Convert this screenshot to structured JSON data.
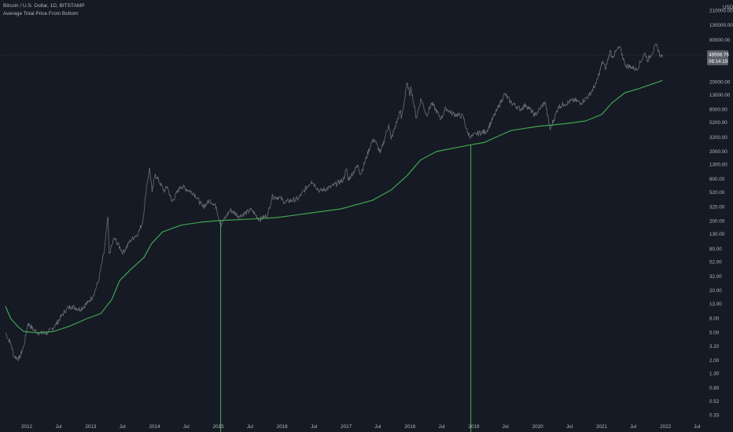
{
  "legend": {
    "symbol_line": "Bitcoin / U.S. Dollar, 1D, BITSTAMP",
    "indicator_line": "Average Total Price From Bottom"
  },
  "price_label": {
    "price": "48568.76",
    "countdown": "06:14:19"
  },
  "colors": {
    "background": "#161a25",
    "price_line": "#6b6e78",
    "indicator_line": "#3fa54f",
    "marker_line": "#4caf50",
    "axis_text": "#b2b5be",
    "label_bg": "#5d606b"
  },
  "chart_data": {
    "type": "line",
    "yscale": "log",
    "ylim": [
      0.27,
      300000
    ],
    "xlim": [
      "2011-08-01",
      "2022-07-31"
    ],
    "currency": "USD",
    "y_ticks": [
      {
        "label": "210000.00",
        "value": 210000
      },
      {
        "label": "130000.00",
        "value": 130000
      },
      {
        "label": "80000.00",
        "value": 80000
      },
      {
        "label": "20000.00",
        "value": 20000
      },
      {
        "label": "13000.00",
        "value": 13000
      },
      {
        "label": "8000.00",
        "value": 8000
      },
      {
        "label": "5200.00",
        "value": 5200
      },
      {
        "label": "3200.00",
        "value": 3200
      },
      {
        "label": "2000.00",
        "value": 2000
      },
      {
        "label": "1300.00",
        "value": 1300
      },
      {
        "label": "800.00",
        "value": 800
      },
      {
        "label": "520.00",
        "value": 520
      },
      {
        "label": "320.00",
        "value": 320
      },
      {
        "label": "200.00",
        "value": 200
      },
      {
        "label": "130.00",
        "value": 130
      },
      {
        "label": "80.00",
        "value": 80
      },
      {
        "label": "52.00",
        "value": 52
      },
      {
        "label": "32.00",
        "value": 32
      },
      {
        "label": "20.00",
        "value": 20
      },
      {
        "label": "13.00",
        "value": 13
      },
      {
        "label": "8.00",
        "value": 8
      },
      {
        "label": "5.00",
        "value": 5
      },
      {
        "label": "3.20",
        "value": 3.2
      },
      {
        "label": "2.00",
        "value": 2
      },
      {
        "label": "1.30",
        "value": 1.3
      },
      {
        "label": "0.80",
        "value": 0.8
      },
      {
        "label": "0.52",
        "value": 0.52
      },
      {
        "label": "0.33",
        "value": 0.33
      }
    ],
    "x_ticks": [
      {
        "label": "2012",
        "date": "2012-01-01"
      },
      {
        "label": "Jul",
        "date": "2012-07-01"
      },
      {
        "label": "2013",
        "date": "2013-01-01"
      },
      {
        "label": "Jul",
        "date": "2013-07-01"
      },
      {
        "label": "2014",
        "date": "2014-01-01"
      },
      {
        "label": "Jul",
        "date": "2014-07-01"
      },
      {
        "label": "2015",
        "date": "2015-01-01"
      },
      {
        "label": "Jul",
        "date": "2015-07-01"
      },
      {
        "label": "2016",
        "date": "2016-01-01"
      },
      {
        "label": "Jul",
        "date": "2016-07-01"
      },
      {
        "label": "2017",
        "date": "2017-01-01"
      },
      {
        "label": "Jul",
        "date": "2017-07-01"
      },
      {
        "label": "2018",
        "date": "2018-01-01"
      },
      {
        "label": "Jul",
        "date": "2018-07-01"
      },
      {
        "label": "2019",
        "date": "2019-01-01"
      },
      {
        "label": "Jul",
        "date": "2019-07-01"
      },
      {
        "label": "2020",
        "date": "2020-01-01"
      },
      {
        "label": "Jul",
        "date": "2020-07-01"
      },
      {
        "label": "2021",
        "date": "2021-01-01"
      },
      {
        "label": "Jul",
        "date": "2021-07-01"
      },
      {
        "label": "2022",
        "date": "2022-01-01"
      },
      {
        "label": "Jul",
        "date": "2022-07-01"
      }
    ],
    "current_price": 48568.76,
    "markers": [
      {
        "date": "2015-01-14"
      },
      {
        "date": "2018-12-15"
      }
    ],
    "series": [
      {
        "name": "Bitcoin / U.S. Dollar",
        "color": "#6b6e78",
        "points": [
          [
            "2011-09-01",
            5.0
          ],
          [
            "2011-10-01",
            3.5
          ],
          [
            "2011-10-20",
            2.3
          ],
          [
            "2011-11-18",
            2.1
          ],
          [
            "2011-12-15",
            3.2
          ],
          [
            "2012-01-08",
            6.8
          ],
          [
            "2012-02-10",
            5.5
          ],
          [
            "2012-03-15",
            4.9
          ],
          [
            "2012-05-01",
            5.0
          ],
          [
            "2012-06-15",
            6.5
          ],
          [
            "2012-08-15",
            11.0
          ],
          [
            "2012-09-15",
            12.0
          ],
          [
            "2012-11-01",
            10.8
          ],
          [
            "2012-12-15",
            13.5
          ],
          [
            "2013-01-15",
            17.0
          ],
          [
            "2013-02-15",
            28.0
          ],
          [
            "2013-03-20",
            75.0
          ],
          [
            "2013-04-09",
            230.0
          ],
          [
            "2013-04-17",
            68.0
          ],
          [
            "2013-05-15",
            115.0
          ],
          [
            "2013-07-05",
            70.0
          ],
          [
            "2013-08-15",
            105.0
          ],
          [
            "2013-09-30",
            135.0
          ],
          [
            "2013-10-25",
            195.0
          ],
          [
            "2013-11-18",
            680.0
          ],
          [
            "2013-12-04",
            1160.0
          ],
          [
            "2013-12-18",
            520.0
          ],
          [
            "2014-01-05",
            950.0
          ],
          [
            "2014-02-25",
            540.0
          ],
          [
            "2014-03-15",
            630.0
          ],
          [
            "2014-04-10",
            380.0
          ],
          [
            "2014-06-01",
            640.0
          ],
          [
            "2014-08-15",
            500.0
          ],
          [
            "2014-10-05",
            320.0
          ],
          [
            "2014-11-15",
            400.0
          ],
          [
            "2014-12-20",
            320.0
          ],
          [
            "2015-01-14",
            175.0
          ],
          [
            "2015-03-10",
            290.0
          ],
          [
            "2015-05-01",
            235.0
          ],
          [
            "2015-07-10",
            290.0
          ],
          [
            "2015-08-24",
            210.0
          ],
          [
            "2015-10-10",
            245.0
          ],
          [
            "2015-11-04",
            450.0
          ],
          [
            "2015-12-15",
            440.0
          ],
          [
            "2016-01-15",
            375.0
          ],
          [
            "2016-04-01",
            420.0
          ],
          [
            "2016-06-17",
            760.0
          ],
          [
            "2016-08-02",
            540.0
          ],
          [
            "2016-10-01",
            610.0
          ],
          [
            "2016-12-15",
            780.0
          ],
          [
            "2017-01-04",
            1130.0
          ],
          [
            "2017-01-12",
            780.0
          ],
          [
            "2017-03-10",
            1280.0
          ],
          [
            "2017-03-25",
            930.0
          ],
          [
            "2017-05-25",
            2700.0
          ],
          [
            "2017-06-12",
            2980.0
          ],
          [
            "2017-07-16",
            1900.0
          ],
          [
            "2017-09-01",
            4900.0
          ],
          [
            "2017-09-15",
            3000.0
          ],
          [
            "2017-11-08",
            7800.0
          ],
          [
            "2017-11-12",
            5900.0
          ],
          [
            "2017-12-17",
            19500.0
          ],
          [
            "2017-12-30",
            12500.0
          ],
          [
            "2018-01-06",
            17200.0
          ],
          [
            "2018-02-06",
            6000.0
          ],
          [
            "2018-03-05",
            11500.0
          ],
          [
            "2018-04-06",
            6600.0
          ],
          [
            "2018-05-05",
            9900.0
          ],
          [
            "2018-06-28",
            5900.0
          ],
          [
            "2018-07-25",
            8400.0
          ],
          [
            "2018-09-01",
            7000.0
          ],
          [
            "2018-11-01",
            6400.0
          ],
          [
            "2018-11-25",
            3800.0
          ],
          [
            "2018-12-15",
            3200.0
          ],
          [
            "2019-01-15",
            3600.0
          ],
          [
            "2019-03-15",
            3900.0
          ],
          [
            "2019-05-15",
            8000.0
          ],
          [
            "2019-06-26",
            13500.0
          ],
          [
            "2019-08-01",
            10200.0
          ],
          [
            "2019-09-25",
            8100.0
          ],
          [
            "2019-10-26",
            9400.0
          ],
          [
            "2019-12-17",
            6600.0
          ],
          [
            "2020-02-13",
            10400.0
          ],
          [
            "2020-03-12",
            4100.0
          ],
          [
            "2020-04-29",
            8800.0
          ],
          [
            "2020-06-01",
            9600.0
          ],
          [
            "2020-07-27",
            11000.0
          ],
          [
            "2020-09-05",
            10000.0
          ],
          [
            "2020-10-21",
            12800.0
          ],
          [
            "2020-12-01",
            19000.0
          ],
          [
            "2021-01-08",
            40000.0
          ],
          [
            "2021-01-22",
            30500.0
          ],
          [
            "2021-02-21",
            57000.0
          ],
          [
            "2021-03-01",
            45000.0
          ],
          [
            "2021-04-14",
            63500.0
          ],
          [
            "2021-05-19",
            34000.0
          ],
          [
            "2021-06-20",
            33000.0
          ],
          [
            "2021-07-20",
            29900.0
          ],
          [
            "2021-09-06",
            52000.0
          ],
          [
            "2021-09-21",
            40500.0
          ],
          [
            "2021-11-10",
            68000.0
          ],
          [
            "2021-12-04",
            47000.0
          ],
          [
            "2021-12-15",
            48568.76
          ]
        ]
      },
      {
        "name": "Average Total Price From Bottom",
        "color": "#3fa54f",
        "points": [
          [
            "2011-09-01",
            12.0
          ],
          [
            "2011-10-01",
            8.0
          ],
          [
            "2011-11-15",
            6.0
          ],
          [
            "2011-12-15",
            5.2
          ],
          [
            "2012-03-01",
            5.0
          ],
          [
            "2012-06-01",
            5.2
          ],
          [
            "2012-09-01",
            6.2
          ],
          [
            "2012-12-01",
            7.8
          ],
          [
            "2013-03-01",
            9.5
          ],
          [
            "2013-05-01",
            15.0
          ],
          [
            "2013-06-15",
            28.0
          ],
          [
            "2013-08-15",
            40.0
          ],
          [
            "2013-11-01",
            60.0
          ],
          [
            "2013-12-15",
            95.0
          ],
          [
            "2014-02-15",
            140.0
          ],
          [
            "2014-06-01",
            175.0
          ],
          [
            "2014-10-01",
            195.0
          ],
          [
            "2015-01-14",
            205.0
          ],
          [
            "2015-06-01",
            212.0
          ],
          [
            "2015-12-01",
            225.0
          ],
          [
            "2016-06-01",
            260.0
          ],
          [
            "2016-12-01",
            300.0
          ],
          [
            "2017-06-01",
            400.0
          ],
          [
            "2017-09-15",
            560.0
          ],
          [
            "2017-12-15",
            900.0
          ],
          [
            "2018-03-01",
            1500.0
          ],
          [
            "2018-06-01",
            2000.0
          ],
          [
            "2018-12-15",
            2500.0
          ],
          [
            "2019-03-01",
            2700.0
          ],
          [
            "2019-08-01",
            4000.0
          ],
          [
            "2020-01-01",
            4600.0
          ],
          [
            "2020-06-01",
            5000.0
          ],
          [
            "2020-10-01",
            5500.0
          ],
          [
            "2021-01-01",
            6800.0
          ],
          [
            "2021-03-01",
            10000.0
          ],
          [
            "2021-05-15",
            14000.0
          ],
          [
            "2021-08-01",
            16000.0
          ],
          [
            "2021-12-15",
            21000.0
          ]
        ]
      }
    ]
  }
}
